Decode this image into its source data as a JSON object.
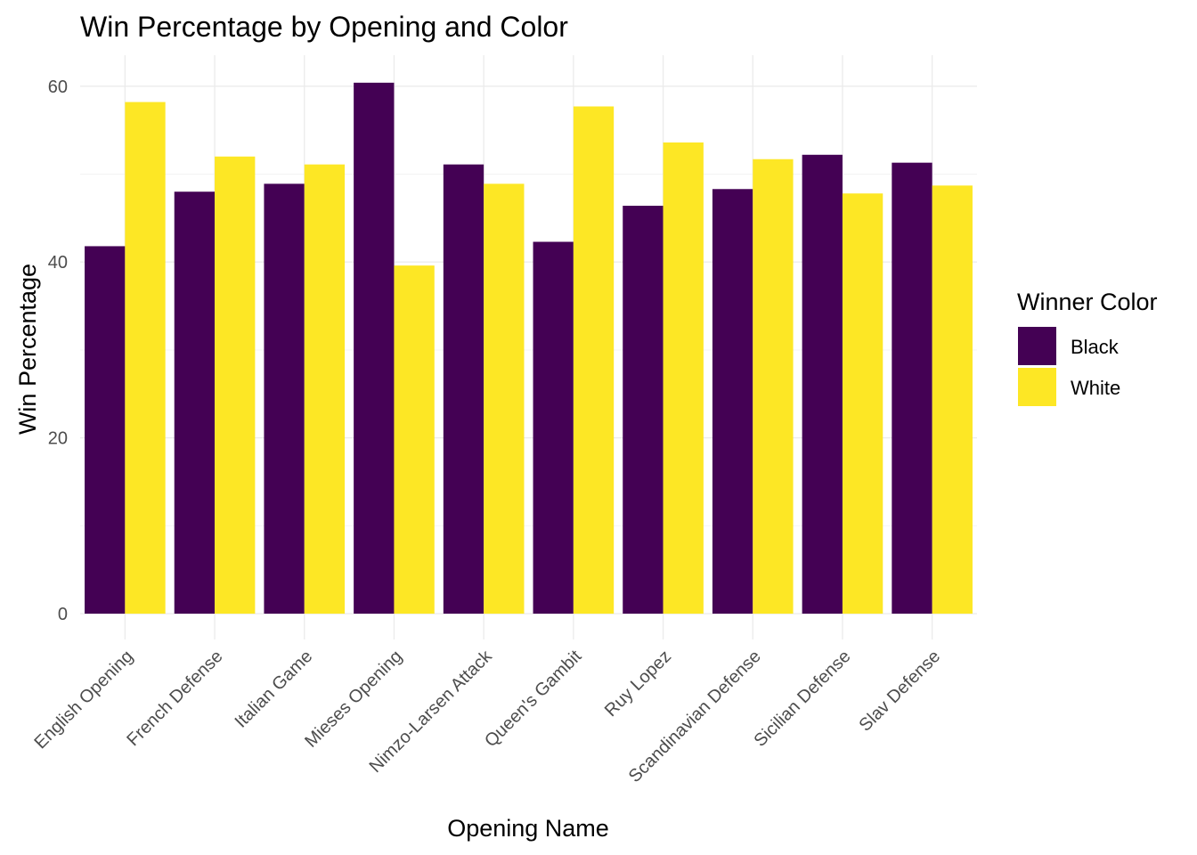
{
  "chart_data": {
    "type": "bar",
    "title": "Win Percentage by Opening and Color",
    "xlabel": "Opening Name",
    "ylabel": "Win Percentage",
    "categories": [
      "English Opening",
      "French Defense",
      "Italian Game",
      "Mieses Opening",
      "Nimzo-Larsen Attack",
      "Queen's Gambit",
      "Ruy Lopez",
      "Scandinavian Defense",
      "Sicilian Defense",
      "Slav Defense"
    ],
    "series": [
      {
        "name": "Black",
        "color": "#440154",
        "values": [
          41.8,
          48.0,
          48.9,
          60.4,
          51.1,
          42.3,
          46.4,
          48.3,
          52.2,
          51.3
        ]
      },
      {
        "name": "White",
        "color": "#FDE725",
        "values": [
          58.2,
          52.0,
          51.1,
          39.6,
          48.9,
          57.7,
          53.6,
          51.7,
          47.8,
          48.7
        ]
      }
    ],
    "ylim": [
      0,
      63.4
    ],
    "yticks": [
      0,
      20,
      40,
      60
    ],
    "grid": true,
    "legend": {
      "title": "Winner Color",
      "position": "right"
    }
  }
}
